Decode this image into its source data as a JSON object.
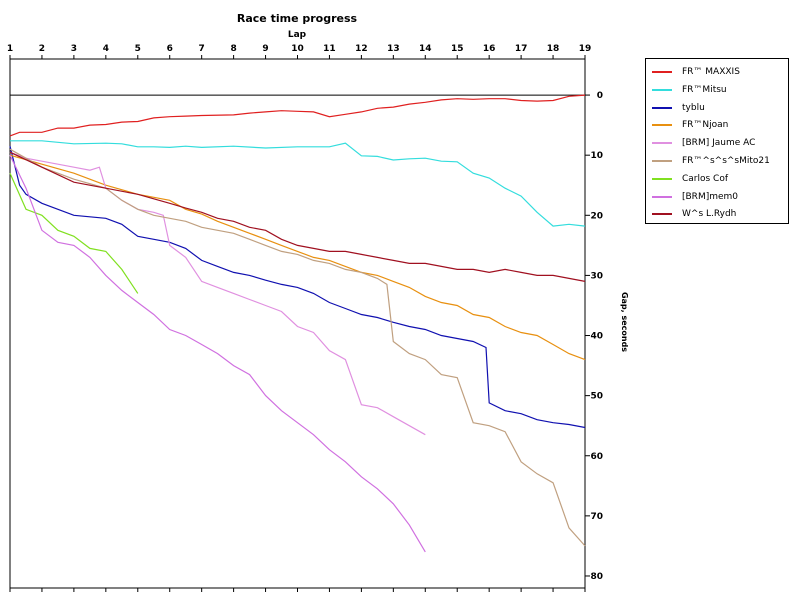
{
  "chart_data": {
    "type": "line",
    "title": "Race time progress",
    "xlabel": "Lap",
    "ylabel": "Gap, seconds",
    "x_ticks": [
      1,
      2,
      3,
      4,
      5,
      6,
      7,
      8,
      9,
      10,
      11,
      12,
      13,
      14,
      15,
      16,
      17,
      18,
      19
    ],
    "y_ticks": [
      0,
      10,
      20,
      30,
      40,
      50,
      60,
      70,
      80
    ],
    "xlim": [
      1,
      19
    ],
    "ylim": [
      -6,
      82
    ],
    "legend_position": "right-top",
    "series": [
      {
        "name": "FR™ MAXXIS",
        "color": "#e02020",
        "x": [
          1,
          1.3,
          2,
          2.5,
          3,
          3.5,
          4,
          4.5,
          5,
          5.5,
          6,
          6.5,
          7,
          8,
          8.5,
          9,
          9.5,
          10,
          10.5,
          11,
          11.5,
          12,
          12.5,
          13,
          13.5,
          14,
          14.5,
          15,
          15.5,
          16,
          16.5,
          17,
          17.5,
          18,
          18.5,
          19
        ],
        "y": [
          6.8,
          6.2,
          6.2,
          5.5,
          5.5,
          5.0,
          4.9,
          4.5,
          4.4,
          3.8,
          3.6,
          3.5,
          3.4,
          3.3,
          3.0,
          2.8,
          2.6,
          2.7,
          2.8,
          3.6,
          3.2,
          2.8,
          2.2,
          2.0,
          1.5,
          1.2,
          0.8,
          0.6,
          0.7,
          0.6,
          0.6,
          0.9,
          1.0,
          0.9,
          0.2,
          0.0
        ]
      },
      {
        "name": "FR™Mitsu",
        "color": "#33dddd",
        "x": [
          1,
          2,
          3,
          4,
          4.5,
          5,
          5.5,
          6,
          6.5,
          7,
          8,
          9,
          10,
          11,
          11.5,
          12,
          12.5,
          13,
          13.5,
          14,
          14.5,
          15,
          15.5,
          16,
          16.5,
          17,
          17.5,
          18,
          18.5,
          19
        ],
        "y": [
          7.6,
          7.6,
          8.1,
          8.0,
          8.1,
          8.6,
          8.6,
          8.7,
          8.5,
          8.7,
          8.5,
          8.8,
          8.6,
          8.6,
          8.0,
          10.1,
          10.2,
          10.8,
          10.6,
          10.5,
          11.0,
          11.1,
          13.0,
          13.8,
          15.5,
          16.8,
          19.5,
          21.8,
          21.5,
          21.8
        ]
      },
      {
        "name": "tyblu",
        "color": "#1010b0",
        "x": [
          1,
          1.3,
          1.5,
          2,
          3,
          4,
          4.5,
          5,
          5.5,
          6,
          6.5,
          7,
          7.5,
          8,
          8.5,
          9,
          9.5,
          10,
          10.5,
          11,
          11.5,
          12,
          12.5,
          13,
          13.5,
          14,
          14.5,
          15,
          15.5,
          15.9,
          16,
          16.5,
          17,
          17.5,
          18,
          18.5,
          19
        ],
        "y": [
          8.5,
          15.0,
          16.5,
          18.0,
          20.0,
          20.5,
          21.5,
          23.5,
          24.0,
          24.5,
          25.5,
          27.5,
          28.5,
          29.5,
          30.0,
          30.8,
          31.5,
          32.0,
          33.0,
          34.5,
          35.5,
          36.5,
          37.0,
          37.8,
          38.5,
          39.0,
          40.0,
          40.5,
          41.0,
          42.0,
          51.2,
          52.5,
          53.0,
          54.0,
          54.5,
          54.8,
          55.3
        ]
      },
      {
        "name": "FR™Njoan",
        "color": "#e89010",
        "x": [
          1,
          2,
          3,
          4,
          5,
          6,
          6.5,
          7,
          7.5,
          8,
          8.5,
          9,
          9.5,
          10,
          10.5,
          11,
          11.5,
          12,
          12.5,
          13,
          13.5,
          14,
          14.5,
          15,
          15.5,
          16,
          16.5,
          17,
          17.5,
          18,
          18.5,
          19
        ],
        "y": [
          10.0,
          11.5,
          13.0,
          15.0,
          16.5,
          17.5,
          19.0,
          19.8,
          21.0,
          22.0,
          23.0,
          24.0,
          25.0,
          26.0,
          27.0,
          27.5,
          28.5,
          29.5,
          30.0,
          31.0,
          32.0,
          33.5,
          34.5,
          35.0,
          36.5,
          37.0,
          38.5,
          39.5,
          40.0,
          41.5,
          43.0,
          44.0
        ]
      },
      {
        "name": "[BRM] Jaume AC",
        "color": "#e090e0",
        "x": [
          1,
          1.5,
          2,
          2.5,
          3,
          3.5,
          3.8,
          4,
          4.5,
          5,
          5.5,
          5.8,
          6,
          6.5,
          7,
          7.5,
          8,
          8.5,
          9,
          9.5,
          10,
          10.5,
          11,
          11.5,
          12,
          12.5,
          13,
          13.5,
          14
        ],
        "y": [
          9.5,
          10.5,
          11.0,
          11.5,
          12.0,
          12.5,
          12.0,
          15.5,
          17.5,
          19.0,
          19.5,
          20.0,
          25.0,
          27.0,
          31.0,
          32.0,
          33.0,
          34.0,
          35.0,
          36.0,
          38.5,
          39.5,
          42.5,
          44.0,
          51.5,
          52.0,
          53.5,
          55.0,
          56.5
        ]
      },
      {
        "name": "FR™^s^s^sMito21",
        "color": "#c0a080",
        "x": [
          1,
          2,
          3,
          4,
          4.5,
          5,
          5.5,
          6,
          6.5,
          7,
          7.5,
          8,
          8.5,
          9,
          9.5,
          10,
          10.5,
          11,
          11.5,
          12,
          12.5,
          12.8,
          13,
          13.5,
          14,
          14.5,
          15,
          15.5,
          16,
          16.5,
          17,
          17.5,
          18,
          18.5,
          19
        ],
        "y": [
          9.0,
          12.0,
          14.0,
          15.5,
          17.5,
          19.0,
          20.0,
          20.5,
          21.0,
          22.0,
          22.5,
          23.0,
          24.0,
          25.0,
          26.0,
          26.5,
          27.5,
          28.0,
          29.0,
          29.5,
          30.5,
          31.5,
          41.0,
          43.0,
          44.0,
          46.5,
          47.0,
          54.5,
          55.0,
          56.0,
          61.0,
          63.0,
          64.5,
          72.0,
          75.0
        ]
      },
      {
        "name": "Carlos Cof",
        "color": "#80e020",
        "x": [
          1,
          1.5,
          2,
          2.5,
          3,
          3.5,
          4,
          4.5,
          5
        ],
        "y": [
          13.0,
          19.0,
          20.0,
          22.5,
          23.5,
          25.5,
          26.0,
          29.0,
          33.0
        ]
      },
      {
        "name": "[BRM]mem0",
        "color": "#d070e0",
        "x": [
          1,
          1.5,
          2,
          2.5,
          3,
          3.5,
          4,
          4.5,
          5,
          5.5,
          6,
          6.5,
          7,
          7.5,
          8,
          8.5,
          9,
          9.5,
          10,
          10.5,
          11,
          11.5,
          12,
          12.5,
          13,
          13.5,
          14
        ],
        "y": [
          10.0,
          15.5,
          22.5,
          24.5,
          25.0,
          27.0,
          30.0,
          32.5,
          34.5,
          36.5,
          39.0,
          40.0,
          41.5,
          43.0,
          45.0,
          46.5,
          50.0,
          52.5,
          54.5,
          56.5,
          59.0,
          61.0,
          63.5,
          65.5,
          68.0,
          71.5,
          76.0
        ]
      },
      {
        "name": "W^s L.Rydh",
        "color": "#a01020",
        "x": [
          1,
          2,
          3,
          4,
          5,
          6,
          6.5,
          7,
          7.5,
          8,
          8.5,
          9,
          9.5,
          10,
          10.5,
          11,
          11.5,
          12,
          12.5,
          13,
          13.5,
          14,
          14.5,
          15,
          15.5,
          16,
          16.5,
          17,
          17.5,
          18,
          18.5,
          19
        ],
        "y": [
          9.5,
          12.0,
          14.5,
          15.5,
          16.5,
          18.0,
          18.8,
          19.5,
          20.5,
          21.0,
          22.0,
          22.5,
          24.0,
          25.0,
          25.5,
          26.0,
          26.0,
          26.5,
          27.0,
          27.5,
          28.0,
          28.0,
          28.5,
          29.0,
          29.0,
          29.5,
          29.0,
          29.5,
          30.0,
          30.0,
          30.5,
          31.0
        ]
      }
    ]
  }
}
